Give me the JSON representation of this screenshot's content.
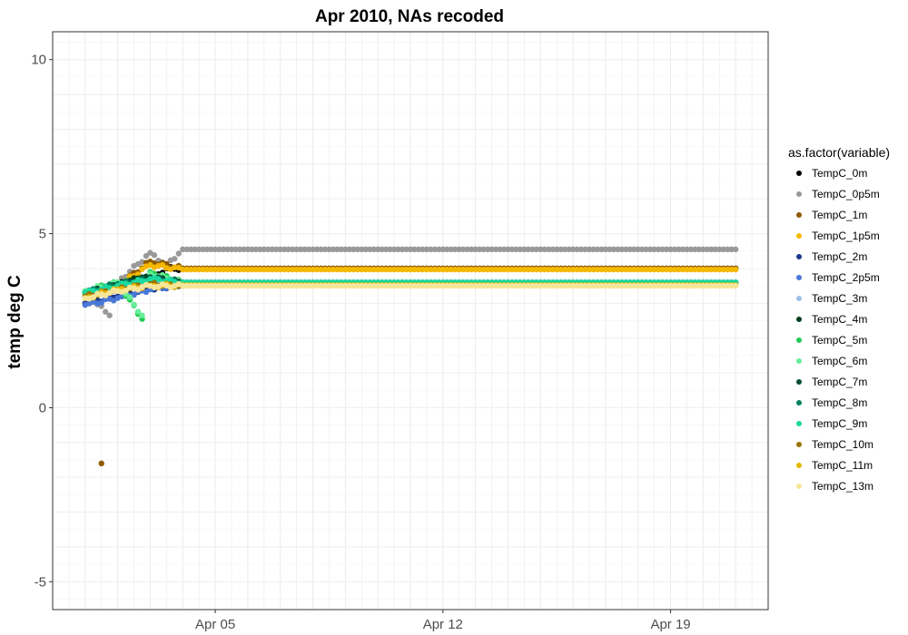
{
  "chart_data": {
    "type": "scatter",
    "title": "Apr 2010, NAs recoded",
    "xlabel": "",
    "ylabel": "temp deg C",
    "x_ticks": [
      "Apr 05",
      "Apr 12",
      "Apr 19"
    ],
    "y_ticks": [
      "-5",
      "0",
      "5",
      "10"
    ],
    "xlim": [
      "2010-03-31",
      "2010-04-22"
    ],
    "ylim": [
      -5.8,
      10.8
    ],
    "grid": true,
    "legend_title": "as.factor(variable)",
    "legend_position": "right",
    "series": [
      {
        "name": "TempC_0m",
        "color": "#000000",
        "points": [
          [
            "2010-04-01",
            3.3
          ],
          [
            "2010-04-02",
            3.5
          ],
          [
            "2010-04-03",
            3.7
          ],
          [
            "2010-04-03T12",
            4.0
          ],
          [
            "2010-04-04",
            4.0
          ],
          [
            "2010-04-21",
            4.0
          ]
        ]
      },
      {
        "name": "TempC_0p5m",
        "color": "#999999",
        "points": [
          [
            "2010-04-01",
            3.3
          ],
          [
            "2010-04-01T18",
            2.65
          ],
          [
            "2010-04-02",
            3.6
          ],
          [
            "2010-04-03",
            4.45
          ],
          [
            "2010-04-03T12",
            4.1
          ],
          [
            "2010-04-04",
            4.55
          ],
          [
            "2010-04-21",
            4.55
          ]
        ]
      },
      {
        "name": "TempC_1m",
        "color": "#8c5a00",
        "points": [
          [
            "2010-04-01",
            3.3
          ],
          [
            "2010-04-01T12",
            -1.6
          ],
          [
            "2010-04-02",
            3.5
          ],
          [
            "2010-04-03",
            4.2
          ],
          [
            "2010-04-04",
            4.0
          ],
          [
            "2010-04-21",
            4.0
          ]
        ]
      },
      {
        "name": "TempC_1p5m",
        "color": "#f5b800",
        "points": [
          [
            "2010-04-01",
            3.3
          ],
          [
            "2010-04-02",
            3.5
          ],
          [
            "2010-04-03",
            4.1
          ],
          [
            "2010-04-04",
            3.97
          ],
          [
            "2010-04-21",
            3.97
          ]
        ]
      },
      {
        "name": "TempC_2m",
        "color": "#1a3a8c",
        "points": [
          [
            "2010-04-01",
            3.0
          ],
          [
            "2010-04-02",
            3.2
          ],
          [
            "2010-04-03",
            3.4
          ],
          [
            "2010-04-04",
            3.55
          ]
        ]
      },
      {
        "name": "TempC_2p5m",
        "color": "#4a78d8",
        "points": [
          [
            "2010-04-01",
            2.95
          ],
          [
            "2010-04-02",
            3.15
          ],
          [
            "2010-04-03",
            3.4
          ],
          [
            "2010-04-04",
            3.55
          ]
        ]
      },
      {
        "name": "TempC_3m",
        "color": "#9fbfe8",
        "points": [
          [
            "2010-04-01",
            3.2
          ],
          [
            "2010-04-02",
            3.45
          ],
          [
            "2010-04-03",
            3.65
          ],
          [
            "2010-04-04",
            3.6
          ]
        ]
      },
      {
        "name": "TempC_4m",
        "color": "#003d1f",
        "points": [
          [
            "2010-04-01",
            3.3
          ],
          [
            "2010-04-02",
            3.55
          ],
          [
            "2010-04-03",
            3.8
          ],
          [
            "2010-04-04",
            3.6
          ],
          [
            "2010-04-21",
            3.6
          ]
        ]
      },
      {
        "name": "TempC_5m",
        "color": "#22cc55",
        "points": [
          [
            "2010-04-01",
            3.35
          ],
          [
            "2010-04-02",
            3.6
          ],
          [
            "2010-04-02T18",
            2.55
          ],
          [
            "2010-04-03",
            3.9
          ],
          [
            "2010-04-04",
            3.6
          ]
        ]
      },
      {
        "name": "TempC_6m",
        "color": "#66ee99",
        "points": [
          [
            "2010-04-01",
            3.35
          ],
          [
            "2010-04-02",
            3.6
          ],
          [
            "2010-04-02T18",
            2.65
          ],
          [
            "2010-04-03",
            3.85
          ],
          [
            "2010-04-04",
            3.6
          ]
        ]
      },
      {
        "name": "TempC_7m",
        "color": "#004d33",
        "points": [
          [
            "2010-04-01",
            3.3
          ],
          [
            "2010-04-02",
            3.55
          ],
          [
            "2010-04-03",
            3.75
          ],
          [
            "2010-04-04",
            3.6
          ]
        ]
      },
      {
        "name": "TempC_8m",
        "color": "#008060",
        "points": [
          [
            "2010-04-01",
            3.3
          ],
          [
            "2010-04-02",
            3.55
          ],
          [
            "2010-04-03",
            3.7
          ],
          [
            "2010-04-04",
            3.6
          ]
        ]
      },
      {
        "name": "TempC_9m",
        "color": "#1ad9a0",
        "points": [
          [
            "2010-04-01",
            3.3
          ],
          [
            "2010-04-02",
            3.5
          ],
          [
            "2010-04-03",
            3.7
          ],
          [
            "2010-04-04",
            3.6
          ],
          [
            "2010-04-21",
            3.6
          ]
        ]
      },
      {
        "name": "TempC_10m",
        "color": "#997300",
        "points": [
          [
            "2010-04-01",
            3.2
          ],
          [
            "2010-04-02",
            3.4
          ],
          [
            "2010-04-03",
            3.55
          ],
          [
            "2010-04-04",
            3.5
          ]
        ]
      },
      {
        "name": "TempC_11m",
        "color": "#e6b800",
        "points": [
          [
            "2010-04-01",
            3.15
          ],
          [
            "2010-04-02",
            3.4
          ],
          [
            "2010-04-03",
            3.5
          ],
          [
            "2010-04-04",
            3.52
          ],
          [
            "2010-04-21",
            3.52
          ]
        ]
      },
      {
        "name": "TempC_13m",
        "color": "#f7e699",
        "points": [
          [
            "2010-04-01",
            3.15
          ],
          [
            "2010-04-02",
            3.35
          ],
          [
            "2010-04-03",
            3.5
          ],
          [
            "2010-04-04",
            3.5
          ],
          [
            "2010-04-21",
            3.5
          ]
        ]
      }
    ]
  }
}
